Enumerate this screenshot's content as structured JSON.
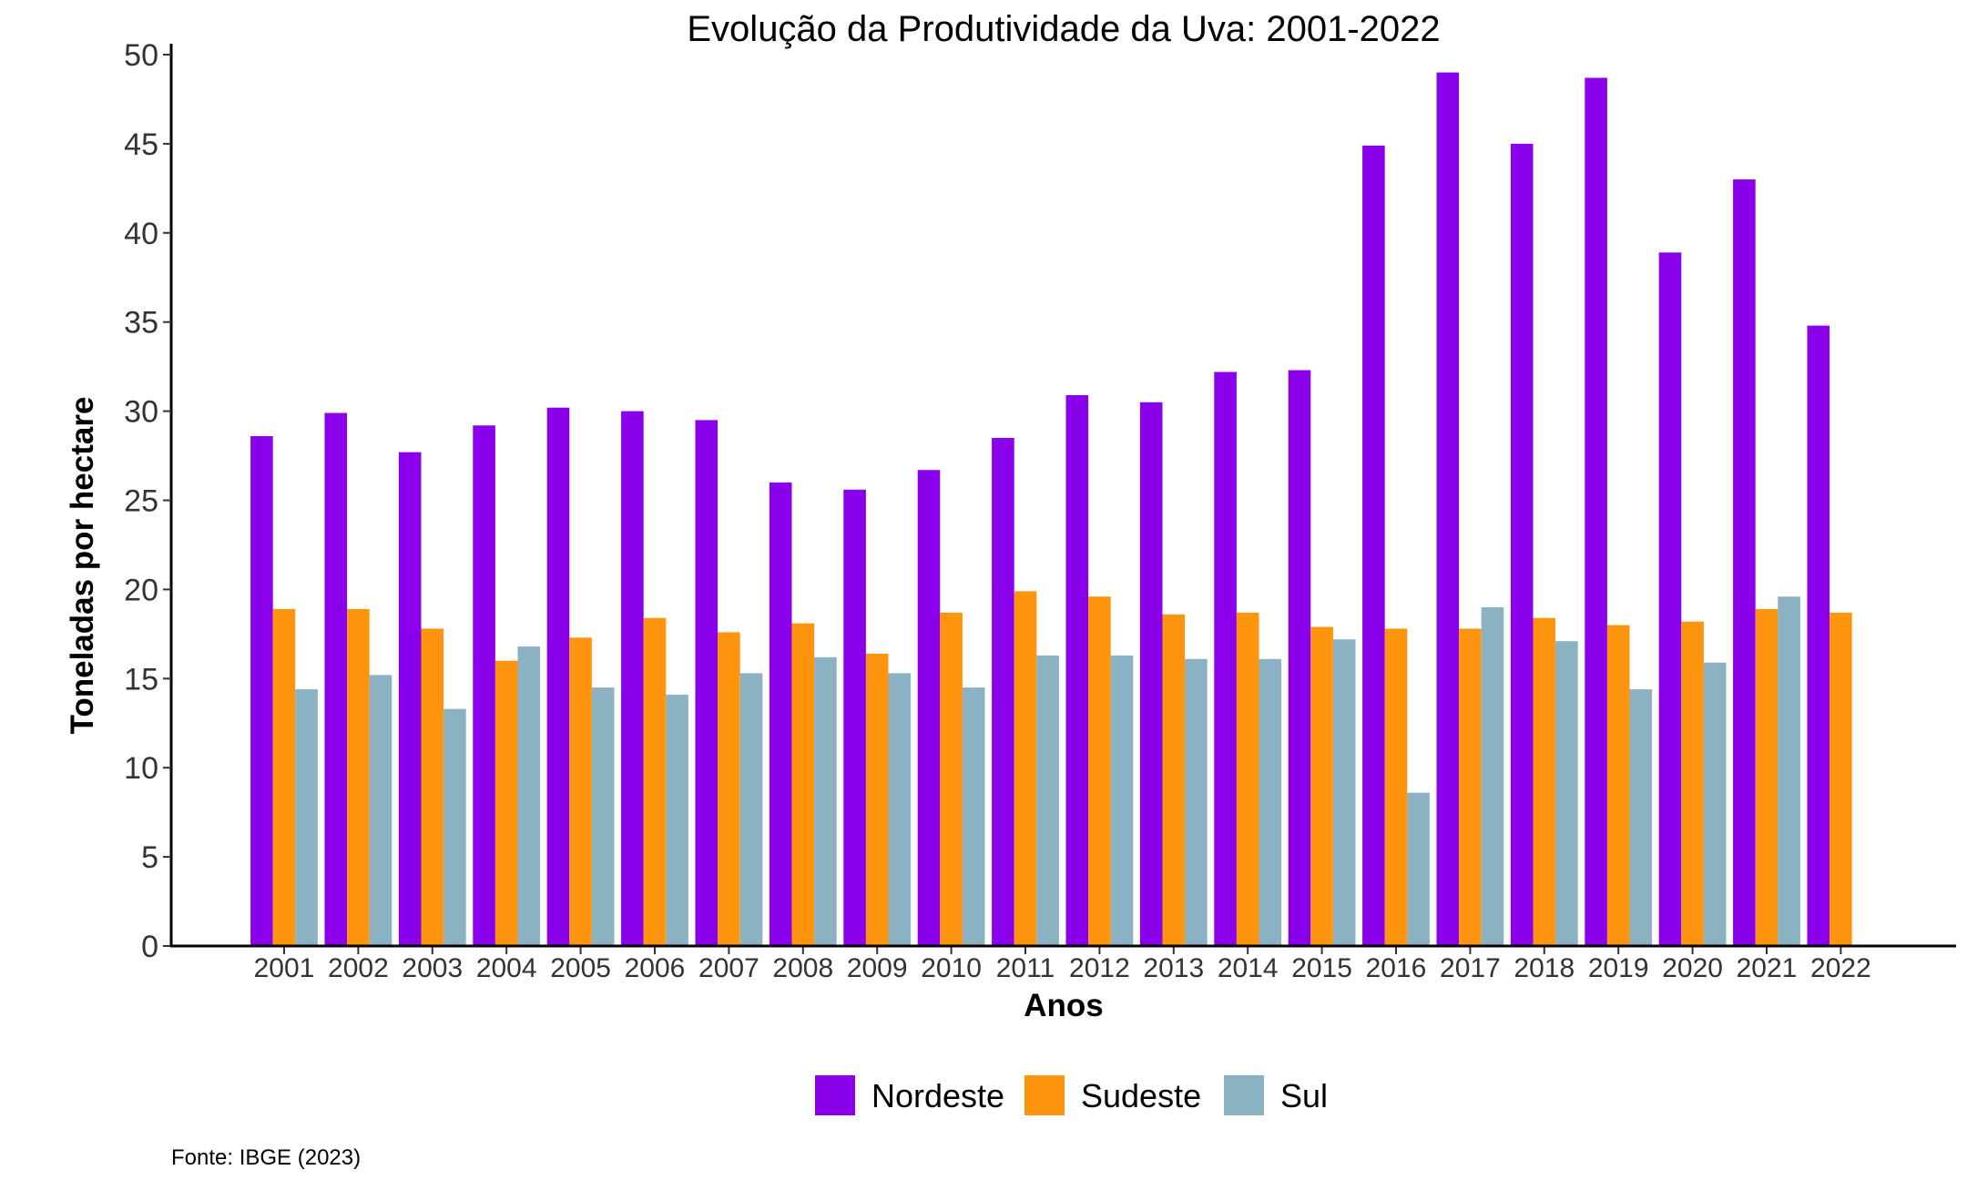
{
  "chart_data": {
    "type": "bar",
    "title": "Evolução da Produtividade da Uva: 2001-2022",
    "xlabel": "Anos",
    "ylabel": "Toneladas por hectare",
    "caption": "Fonte: IBGE (2023)",
    "ylim": [
      0,
      50
    ],
    "yticks": [
      "0",
      "5",
      "10",
      "15",
      "20",
      "25",
      "30",
      "35",
      "40",
      "45",
      "50"
    ],
    "grid": false,
    "legend_position": "bottom",
    "categories": [
      "2001",
      "2002",
      "2003",
      "2004",
      "2005",
      "2006",
      "2007",
      "2008",
      "2009",
      "2010",
      "2011",
      "2012",
      "2013",
      "2014",
      "2015",
      "2016",
      "2017",
      "2018",
      "2019",
      "2020",
      "2021",
      "2022"
    ],
    "series": [
      {
        "name": "Nordeste",
        "color": "#8B00EB",
        "values": [
          28.6,
          29.9,
          27.7,
          29.2,
          30.2,
          30.0,
          29.5,
          26.0,
          25.6,
          26.7,
          28.5,
          30.9,
          30.5,
          32.2,
          32.3,
          44.9,
          49.0,
          45.0,
          48.7,
          38.9,
          43.0,
          34.8
        ]
      },
      {
        "name": "Sudeste",
        "color": "#FF940E",
        "values": [
          18.9,
          18.9,
          17.8,
          16.0,
          17.3,
          18.4,
          17.6,
          18.1,
          16.4,
          18.7,
          19.9,
          19.6,
          18.6,
          18.7,
          17.9,
          17.8,
          17.8,
          18.4,
          18.0,
          18.2,
          18.9,
          18.7
        ]
      },
      {
        "name": "Sul",
        "color": "#8BB2C2",
        "values": [
          14.4,
          15.2,
          13.3,
          16.8,
          14.5,
          14.1,
          15.3,
          16.2,
          15.3,
          14.5,
          16.3,
          16.3,
          16.1,
          16.1,
          17.2,
          8.6,
          19.0,
          17.1,
          14.4,
          15.9,
          19.6,
          null
        ]
      }
    ]
  }
}
